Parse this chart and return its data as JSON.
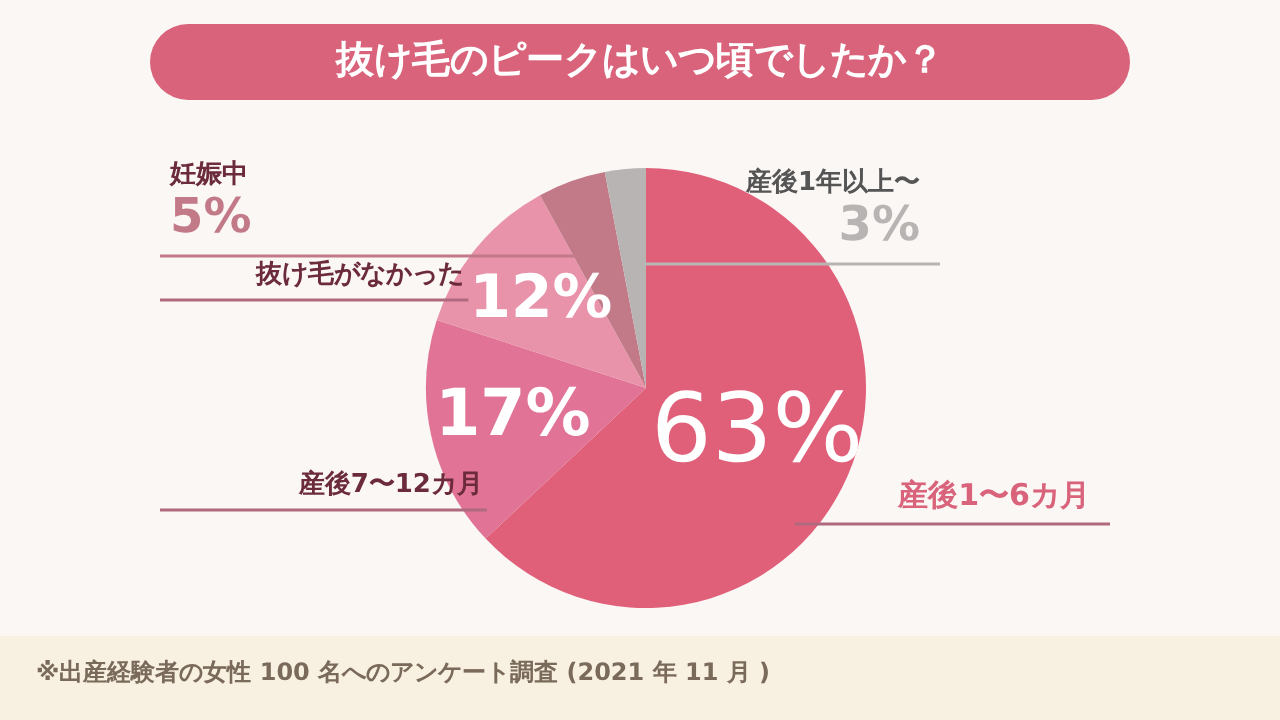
{
  "chart_data": {
    "type": "pie",
    "title": "抜け毛のピークはいつ頃でしたか？",
    "categories": [
      "産後1〜6カ月",
      "産後7〜12カ月",
      "抜け毛がなかった",
      "妊娠中",
      "産後1年以上〜"
    ],
    "values": [
      63,
      17,
      12,
      5,
      3
    ],
    "value_labels": [
      "63%",
      "17%",
      "12%",
      "5%",
      "3%"
    ],
    "colors": [
      "#e0607a",
      "#e07396",
      "#e893aa",
      "#c27a88",
      "#b9b4b4"
    ],
    "legend": false,
    "annotations": [
      "※出産経験者の女性 100 名へのアンケート調査 (2021 年 11 月 )"
    ]
  }
}
